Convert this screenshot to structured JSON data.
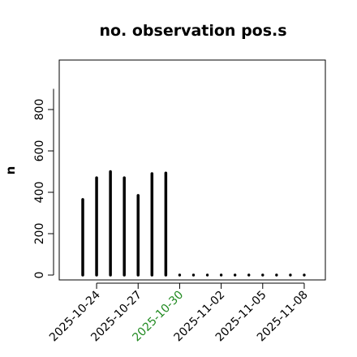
{
  "chart_data": {
    "type": "bar",
    "title": "no. observation pos.s",
    "ylabel": "n",
    "xlabel": "",
    "ylim": [
      0,
      900
    ],
    "yticks": [
      0,
      200,
      400,
      600,
      800
    ],
    "grid": false,
    "legend": "none",
    "bar_color": "#000000",
    "x_tick_labels": [
      {
        "label": "2025-10-24",
        "color": "#000000"
      },
      {
        "label": "2025-10-27",
        "color": "#000000"
      },
      {
        "label": "2025-10-30",
        "color": "#228B22"
      },
      {
        "label": "2025-11-02",
        "color": "#000000"
      },
      {
        "label": "2025-11-05",
        "color": "#000000"
      },
      {
        "label": "2025-11-08",
        "color": "#000000"
      }
    ],
    "categories": [
      "2025-10-23",
      "2025-10-24",
      "2025-10-25",
      "2025-10-26",
      "2025-10-27",
      "2025-10-28",
      "2025-10-29",
      "2025-10-30",
      "2025-10-31",
      "2025-11-01",
      "2025-11-02",
      "2025-11-03",
      "2025-11-04",
      "2025-11-05",
      "2025-11-06",
      "2025-11-07",
      "2025-11-08"
    ],
    "values": [
      365,
      470,
      500,
      470,
      385,
      490,
      493,
      0,
      0,
      0,
      0,
      0,
      0,
      0,
      0,
      0,
      0
    ]
  }
}
